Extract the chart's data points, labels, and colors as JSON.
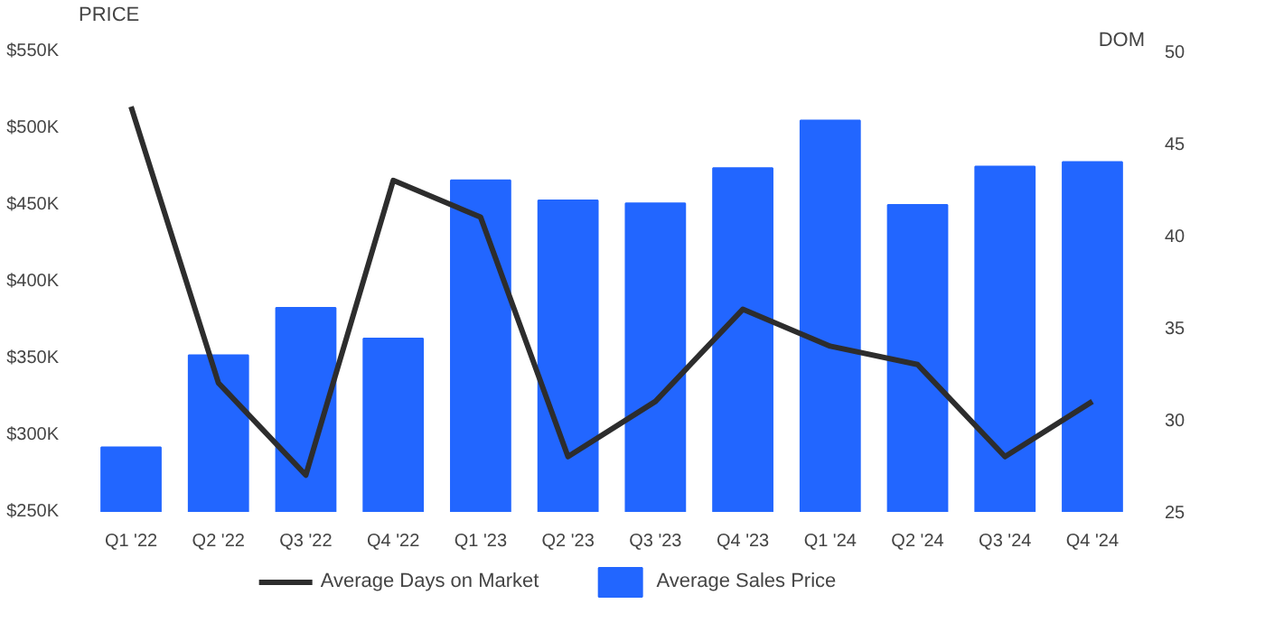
{
  "chart_data": {
    "type": "bar",
    "ylabel": "PRICE",
    "y2label": "DOM",
    "categories": [
      "Q1 '22",
      "Q2 '22",
      "Q3 '22",
      "Q4 '22",
      "Q1 '23",
      "Q2 '23",
      "Q3 '23",
      "Q4 '23",
      "Q1 '24",
      "Q2 '24",
      "Q3 '24",
      "Q4 '24"
    ],
    "series": [
      {
        "name": "Average Days on Market",
        "type": "line",
        "axis": "y2",
        "color": "#2d2d2d",
        "values": [
          47,
          32,
          27,
          43,
          41,
          28,
          31,
          36,
          34,
          33,
          28,
          31
        ]
      },
      {
        "name": "Average Sales Price",
        "color": "#2266ff",
        "values": [
          292,
          352,
          383,
          363,
          466,
          453,
          451,
          474,
          505,
          450,
          475,
          478
        ]
      }
    ],
    "ylim": [
      250,
      550
    ],
    "yticks": [
      {
        "value": 250,
        "label": "$250K"
      },
      {
        "value": 300,
        "label": "$300K"
      },
      {
        "value": 350,
        "label": "$350K"
      },
      {
        "value": 400,
        "label": "$400K"
      },
      {
        "value": 450,
        "label": "$450K"
      },
      {
        "value": 500,
        "label": "$500K"
      },
      {
        "value": 550,
        "label": "$550K"
      }
    ],
    "y2lim": [
      25,
      50
    ],
    "y2ticks": [
      25,
      30,
      35,
      40,
      45,
      50
    ],
    "grid": false,
    "legend": "bottom",
    "marker": "none",
    "line_style": "solid"
  }
}
